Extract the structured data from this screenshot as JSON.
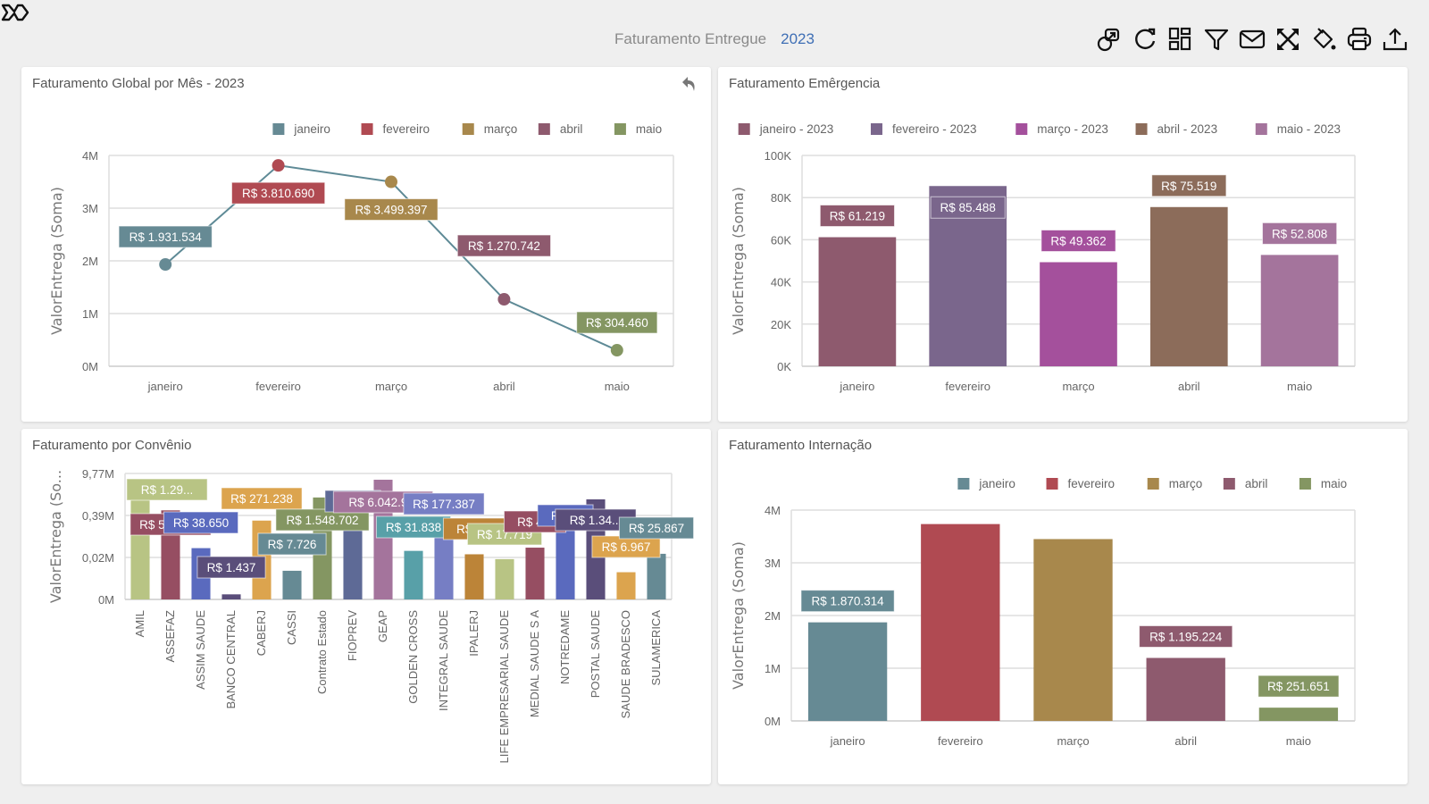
{
  "header": {
    "title": "Faturamento Entregue",
    "year": "2023"
  },
  "toolbar": [
    {
      "name": "link-icon",
      "label": "Vincular"
    },
    {
      "name": "refresh-icon",
      "label": "Atualizar"
    },
    {
      "name": "layout-icon",
      "label": "Layout"
    },
    {
      "name": "filter-icon",
      "label": "Filtro"
    },
    {
      "name": "mail-icon",
      "label": "Email"
    },
    {
      "name": "fullscreen-icon",
      "label": "Tela cheia"
    },
    {
      "name": "paint-bucket-icon",
      "label": "Tema"
    },
    {
      "name": "print-icon",
      "label": "Imprimir"
    },
    {
      "name": "export-icon",
      "label": "Exportar"
    }
  ],
  "colors": {
    "janeiro": "#668a94",
    "fevereiro": "#b04a52",
    "marco": "#a8884c",
    "abril": "#8e5a6e",
    "maio": "#849662"
  },
  "chart_data": [
    {
      "id": "global",
      "type": "line",
      "title": "Faturamento Global por Mês - 2023",
      "ylabel": "ValorEntrega (Soma)",
      "xlabel": "",
      "categories": [
        "janeiro",
        "fevereiro",
        "março",
        "abril",
        "maio"
      ],
      "values": [
        1931534,
        3810690,
        3499397,
        1270742,
        304460
      ],
      "labels": [
        "R$ 1.931.534",
        "R$ 3.810.690",
        "R$ 3.499.397",
        "R$ 1.270.742",
        "R$ 304.460"
      ],
      "point_colors": [
        "#668a94",
        "#b04a52",
        "#a8884c",
        "#8e5a6e",
        "#849662"
      ],
      "line_color": "#5e8a96",
      "legend": [
        "janeiro",
        "fevereiro",
        "março",
        "abril",
        "maio"
      ],
      "legend_position": "top-right",
      "yticks": [
        "0M",
        "1M",
        "2M",
        "3M",
        "4M"
      ],
      "ylim": [
        0,
        4000000
      ],
      "grid": true
    },
    {
      "id": "emergencia",
      "type": "bar",
      "title": "Faturamento Emêrgencia",
      "ylabel": "ValorEntrega (Soma)",
      "xlabel": "",
      "categories": [
        "janeiro",
        "fevereiro",
        "março",
        "abril",
        "maio"
      ],
      "values": [
        61219,
        85488,
        49362,
        75519,
        52808
      ],
      "labels": [
        "R$ 61.219",
        "R$ 85.488",
        "R$ 49.362",
        "R$ 75.519",
        "R$ 52.808"
      ],
      "colors": [
        "#8e5a6e",
        "#7a668c",
        "#a4509c",
        "#8c6c5a",
        "#a4749c"
      ],
      "legend": [
        "janeiro - 2023",
        "fevereiro - 2023",
        "março - 2023",
        "abril - 2023",
        "maio - 2023"
      ],
      "legend_position": "top-right",
      "yticks": [
        "0K",
        "20K",
        "40K",
        "60K",
        "80K",
        "100K"
      ],
      "ylim": [
        0,
        100000
      ],
      "grid": true
    },
    {
      "id": "convenio",
      "type": "bar",
      "title": "Faturamento por Convênio",
      "ylabel": "ValorEntrega (So...",
      "xlabel": "",
      "yscale": "log",
      "categories": [
        "AMIL",
        "ASSEFAZ",
        "ASSIM SAUDE",
        "BANCO CENTRAL",
        "CABERJ",
        "CASSI",
        "Contrato Estado",
        "FIOPREV",
        "GEAP",
        "GOLDEN CROSS",
        "INTEGRAL SAUDE",
        "IPALERJ",
        "LIFE EMPRESARIAL SAUDE",
        "MEDIAL SAUDE S A",
        "NOTREDAME",
        "POSTAL SAUDE",
        "SAUDE BRADESCO",
        "SULAMERICA"
      ],
      "values": [
        1290000,
        576798,
        38650,
        1437,
        271238,
        7726,
        1548702,
        1500000,
        6042900,
        31838,
        177387,
        25000,
        17719,
        40000,
        150000,
        1340000,
        6967,
        25867
      ],
      "labels": [
        "R$ 1.29...",
        "R$ 576.798",
        "R$ 38.650",
        "R$ 1.437",
        "R$ 271.238",
        "R$ 7.726",
        "R$ 1.548.702",
        "R$ ...",
        "R$ 6.042.9...",
        "R$ 31.838",
        "R$ 177.387",
        "R$ 2...",
        "R$ 17.719",
        "R$ 4...",
        "R$ ...",
        "R$ 1.34...",
        "R$ 6.967",
        "R$ 25.867"
      ],
      "colors": [
        "#b8c484",
        "#964e62",
        "#5a6abe",
        "#5a4e7a",
        "#dca44e",
        "#668a94",
        "#849662",
        "#5e6a96",
        "#a4749c",
        "#58a0a8",
        "#767ec4",
        "#bc8438",
        "#b8c484",
        "#964e62",
        "#5a6abe",
        "#5a4e7a",
        "#dca44e",
        "#668a94"
      ],
      "yticks": [
        "0M",
        "0,02M",
        "0,39M",
        "9,77M"
      ],
      "ylim": [
        0,
        9770000
      ],
      "grid": true
    },
    {
      "id": "internacao",
      "type": "bar",
      "title": "Faturamento Internação",
      "ylabel": "ValorEntrega (Soma)",
      "xlabel": "",
      "categories": [
        "janeiro",
        "fevereiro",
        "março",
        "abril",
        "maio"
      ],
      "values": [
        1870314,
        3735000,
        3450000,
        1195224,
        251651
      ],
      "labels": [
        "R$ 1.870.314",
        "",
        "",
        "R$ 1.195.224",
        "R$ 251.651"
      ],
      "colors": [
        "#668a94",
        "#b04a52",
        "#a8884c",
        "#8e5a6e",
        "#849662"
      ],
      "legend": [
        "janeiro",
        "fevereiro",
        "março",
        "abril",
        "maio"
      ],
      "legend_position": "top-right",
      "yticks": [
        "0M",
        "1M",
        "2M",
        "3M",
        "4M"
      ],
      "ylim": [
        0,
        4000000
      ],
      "grid": true
    }
  ]
}
